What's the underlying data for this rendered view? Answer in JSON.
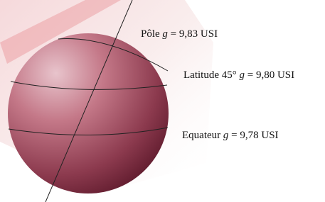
{
  "labels": [
    {
      "place": "Pôle",
      "symbol": "g",
      "relation": "=",
      "value": "9,83",
      "unit": "USI"
    },
    {
      "place": "Latitude 45°",
      "symbol": "g",
      "relation": "=",
      "value": "9,80",
      "unit": "USI"
    },
    {
      "place": "Equateur",
      "symbol": "g",
      "relation": "=",
      "value": "9,78",
      "unit": "USI"
    }
  ]
}
